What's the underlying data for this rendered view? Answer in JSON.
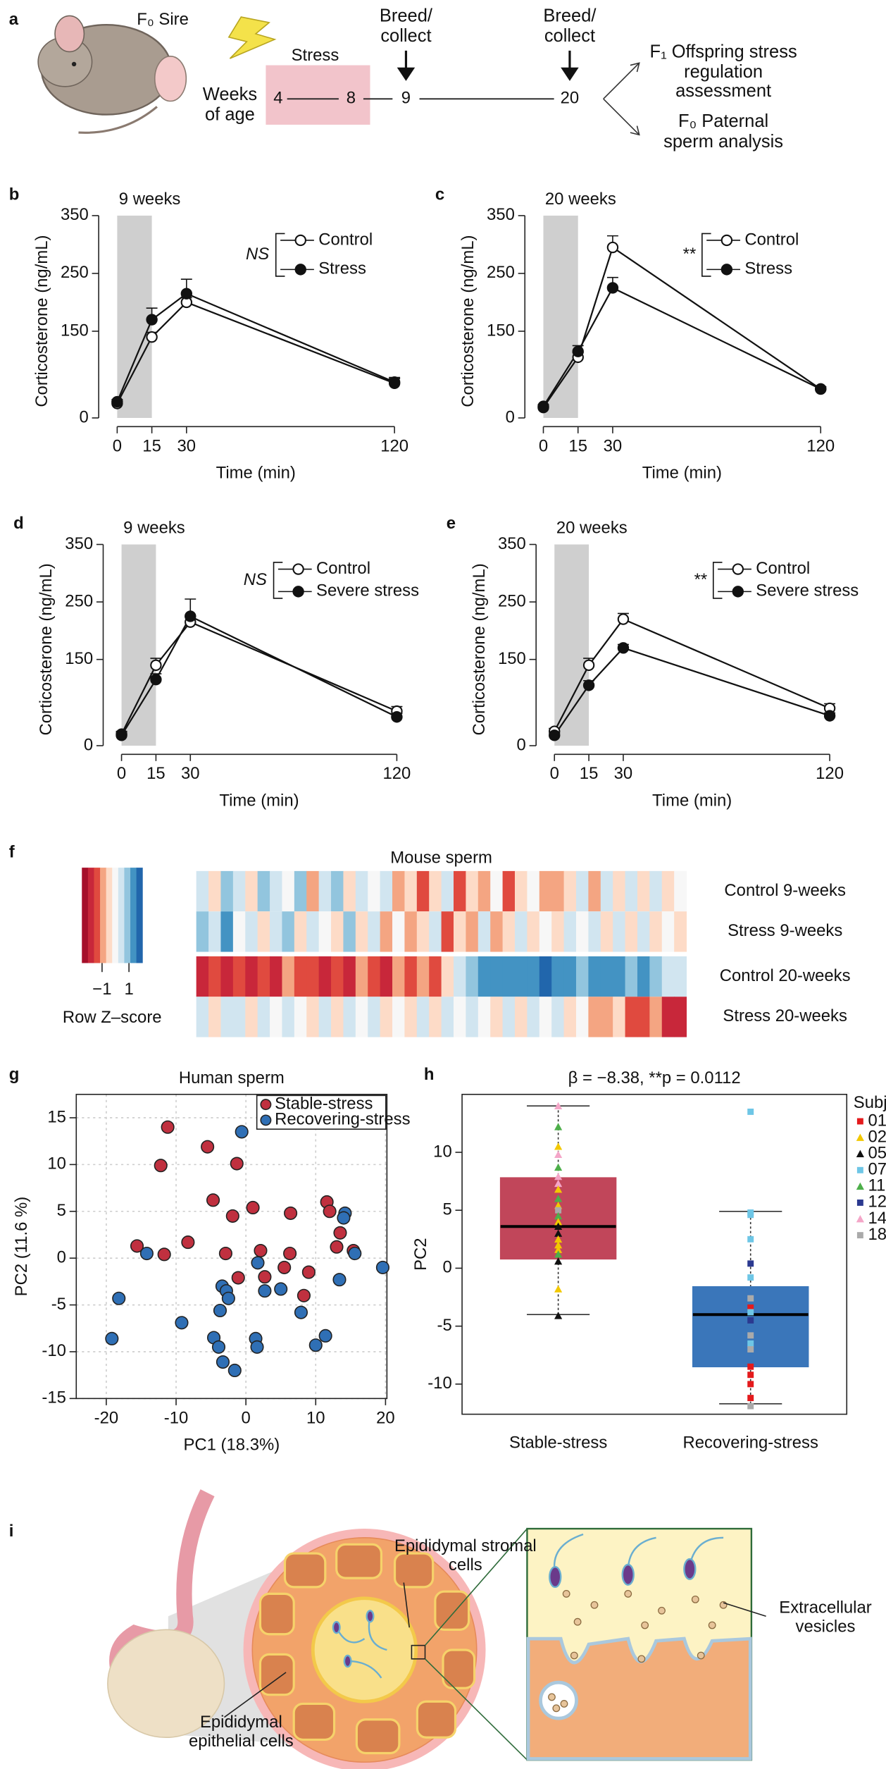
{
  "panel_a": {
    "panel": "a",
    "sire": "F₀ Sire",
    "stress": "Stress",
    "weeks_label": "Weeks of age",
    "timeline": [
      "4",
      "8",
      "9",
      "20"
    ],
    "breed1": "Breed/ collect",
    "breed2": "Breed/ collect",
    "offspring": "F₁ Offspring stress regulation assessment",
    "paternal": "F₀ Paternal sperm analysis"
  },
  "chart_data": [
    {
      "panel": "b",
      "type": "line",
      "title": "9 weeks",
      "x": [
        0,
        15,
        30,
        120
      ],
      "xticks": [
        0,
        15,
        30,
        120
      ],
      "xlim": [
        -8,
        124
      ],
      "ylim": [
        -15,
        350
      ],
      "yticks": [
        0,
        150,
        250,
        350
      ],
      "xlabel": "Time (min)",
      "ylabel": "Corticosterone (ng/mL)",
      "shaded_x": [
        0,
        15
      ],
      "annotation": "NS",
      "series": [
        {
          "name": "Control",
          "marker": "open",
          "values": [
            25,
            140,
            200,
            60
          ],
          "errors": [
            4,
            8,
            8,
            8
          ]
        },
        {
          "name": "Stress",
          "marker": "filled",
          "values": [
            28,
            170,
            215,
            62
          ],
          "errors": [
            4,
            20,
            25,
            8
          ]
        }
      ]
    },
    {
      "panel": "c",
      "type": "line",
      "title": "20 weeks",
      "x": [
        0,
        15,
        30,
        120
      ],
      "xticks": [
        0,
        15,
        30,
        120
      ],
      "xlim": [
        -8,
        124
      ],
      "ylim": [
        -15,
        350
      ],
      "yticks": [
        0,
        150,
        250,
        350
      ],
      "xlabel": "Time (min)",
      "ylabel": "Corticosterone (ng/mL)",
      "shaded_x": [
        0,
        15
      ],
      "annotation": "**",
      "series": [
        {
          "name": "Control",
          "marker": "open",
          "values": [
            18,
            105,
            295,
            50
          ],
          "errors": [
            3,
            8,
            20,
            4
          ]
        },
        {
          "name": "Stress",
          "marker": "filled",
          "values": [
            20,
            115,
            225,
            50
          ],
          "errors": [
            3,
            10,
            18,
            4
          ]
        }
      ]
    },
    {
      "panel": "d",
      "type": "line",
      "title": "9 weeks",
      "x": [
        0,
        15,
        30,
        120
      ],
      "xticks": [
        0,
        15,
        30,
        120
      ],
      "xlim": [
        -8,
        124
      ],
      "ylim": [
        -15,
        350
      ],
      "yticks": [
        0,
        150,
        250,
        350
      ],
      "xlabel": "Time (min)",
      "ylabel": "Corticosterone (ng/mL)",
      "shaded_x": [
        0,
        15
      ],
      "annotation": "NS",
      "series": [
        {
          "name": "Control",
          "marker": "open",
          "values": [
            20,
            140,
            215,
            60
          ],
          "errors": [
            5,
            12,
            10,
            8
          ]
        },
        {
          "name": "Severe stress",
          "marker": "filled",
          "values": [
            18,
            115,
            225,
            50
          ],
          "errors": [
            5,
            10,
            30,
            6
          ]
        }
      ]
    },
    {
      "panel": "e",
      "type": "line",
      "title": "20 weeks",
      "x": [
        0,
        15,
        30,
        120
      ],
      "xticks": [
        0,
        15,
        30,
        120
      ],
      "xlim": [
        -8,
        124
      ],
      "ylim": [
        -15,
        350
      ],
      "yticks": [
        0,
        150,
        250,
        350
      ],
      "xlabel": "Time (min)",
      "ylabel": "Corticosterone (ng/mL)",
      "shaded_x": [
        0,
        15
      ],
      "annotation": "**",
      "series": [
        {
          "name": "Control",
          "marker": "open",
          "values": [
            25,
            140,
            220,
            65
          ],
          "errors": [
            5,
            12,
            10,
            8
          ]
        },
        {
          "name": "Severe stress",
          "marker": "filled",
          "values": [
            18,
            105,
            170,
            52
          ],
          "errors": [
            3,
            8,
            6,
            5
          ]
        }
      ]
    },
    {
      "panel": "f",
      "type": "heatmap",
      "title": "Mouse sperm",
      "rows": [
        "Control 9-weeks",
        "Stress 9-weeks",
        "Control 20-weeks",
        "Stress 20-weeks"
      ],
      "zlim": [
        -2.5,
        2
      ],
      "palette": [
        "#a50f2a",
        "#c8273a",
        "#e04a3f",
        "#f4a582",
        "#fddbc7",
        "#f7f7f7",
        "#d1e5f0",
        "#92c5de",
        "#4393c3",
        "#2166ac"
      ],
      "colorbar_label": "Row Z–score",
      "colorbar_ticks": [
        {
          "value": -1,
          "label": "−1"
        },
        1
      ],
      "values": [
        [
          0.5,
          -0.3,
          0.8,
          0.2,
          -0.6,
          1.0,
          0.4,
          -0.2,
          0.7,
          -0.8,
          0.3,
          0.9,
          -0.4,
          0.6,
          -0.1,
          0.5,
          -0.9,
          -0.3,
          -1.2,
          -0.5,
          0.2,
          -1.4,
          -0.7,
          -1.0,
          -0.2,
          -1.3,
          -0.6,
          0.1,
          -0.9,
          -1.1,
          -0.4,
          0.3,
          -0.8,
          0.6,
          -0.3,
          0.4,
          -0.6,
          0.2,
          -0.5,
          0.1
        ],
        [
          0.9,
          0.3,
          1.1,
          -0.2,
          0.6,
          -0.4,
          0.2,
          0.8,
          -0.6,
          0.5,
          0.1,
          -0.3,
          0.7,
          -0.5,
          0.3,
          -0.9,
          -0.2,
          -1.1,
          -0.6,
          0.4,
          -1.3,
          -0.4,
          -0.8,
          0.2,
          -1.0,
          -0.5,
          0.3,
          -0.7,
          0.1,
          -0.3,
          0.6,
          -0.2,
          0.5,
          -0.4,
          0.3,
          -0.6,
          0.2,
          -0.3,
          0.1,
          -0.5
        ],
        [
          -1.8,
          -1.5,
          -1.9,
          -1.2,
          -1.6,
          -1.4,
          -1.7,
          -1.1,
          -1.5,
          -1.3,
          -1.8,
          -1.2,
          -1.6,
          -1.0,
          -1.4,
          -1.7,
          -1.1,
          -1.3,
          -0.9,
          -1.2,
          -0.6,
          0.3,
          0.9,
          1.2,
          1.4,
          1.1,
          1.5,
          1.3,
          1.6,
          1.2,
          1.4,
          1.0,
          1.3,
          1.5,
          1.1,
          0.9,
          1.2,
          0.8,
          0.6,
          0.4
        ],
        [
          0.4,
          -0.3,
          0.6,
          0.2,
          -0.5,
          0.3,
          -0.2,
          0.5,
          0.1,
          -0.4,
          0.3,
          -0.6,
          0.2,
          -0.1,
          0.4,
          -0.3,
          0.1,
          -0.7,
          0.2,
          -0.4,
          0.5,
          -0.2,
          0.3,
          0.1,
          -0.5,
          0.4,
          -0.3,
          0.2,
          -0.1,
          0.3,
          -0.6,
          -0.2,
          -0.8,
          -1.0,
          -0.7,
          -1.2,
          -1.4,
          -1.1,
          -1.6,
          -1.8
        ]
      ]
    },
    {
      "panel": "g",
      "type": "scatter",
      "title": "Human sperm",
      "xlabel": "PC1 (18.3%)",
      "ylabel": "PC2 (11.6 %)",
      "xlim": [
        -24.3,
        20.2
      ],
      "ylim": [
        -15,
        17.5
      ],
      "xticks": [
        -20,
        -10,
        0,
        10,
        20
      ],
      "yticks": [
        -15,
        -10,
        -5,
        0,
        5,
        10,
        15
      ],
      "grid": true,
      "legend": "top-right",
      "series": [
        {
          "name": "Stable-stress",
          "color": "#c0303f",
          "x": [
            -11.2,
            -12.2,
            -5.5,
            -1.3,
            -4.7,
            -1.9,
            1.0,
            -8.3,
            -15.6,
            -11.7,
            -2.9,
            6.4,
            11.6,
            13.5,
            15.4,
            13.0,
            6.3,
            2.1,
            5.5,
            2.7,
            8.3,
            -1.1,
            12.0,
            9.0
          ],
          "values": [
            14.0,
            9.9,
            11.9,
            10.1,
            6.2,
            4.5,
            5.4,
            1.7,
            1.3,
            0.4,
            0.5,
            4.8,
            6.0,
            2.7,
            0.8,
            1.2,
            0.5,
            0.8,
            -1.0,
            -2.0,
            -4.0,
            -2.1,
            5.0,
            -1.5
          ]
        },
        {
          "name": "Recovering-stress",
          "color": "#2f6fb5",
          "x": [
            -0.6,
            -18.2,
            -19.2,
            -14.2,
            -9.2,
            -3.4,
            -2.8,
            -2.5,
            -3.7,
            -4.6,
            -3.9,
            -3.3,
            -1.6,
            1.4,
            1.6,
            1.7,
            2.7,
            5.0,
            7.9,
            10.0,
            11.4,
            14.2,
            14.0,
            15.6,
            19.6,
            13.4
          ],
          "values": [
            13.5,
            -4.3,
            -8.6,
            0.5,
            -6.9,
            -3.0,
            -3.5,
            -4.3,
            -5.6,
            -8.5,
            -9.5,
            -11.1,
            -12.0,
            -8.6,
            -9.5,
            -0.5,
            -3.5,
            -3.3,
            -5.8,
            -9.3,
            -8.3,
            4.8,
            4.3,
            0.5,
            -1.0,
            -2.3
          ]
        }
      ]
    },
    {
      "panel": "h",
      "type": "box",
      "title": "β = −8.38, **p = 0.0112",
      "ylabel": "PC2",
      "ylim": [
        -12.6,
        15
      ],
      "yticks": [
        -10,
        -5,
        0,
        5,
        10
      ],
      "categories": [
        "Stable-stress",
        "Recovering-stress"
      ],
      "colors": [
        "#c1465a",
        "#3a76ba"
      ],
      "boxes": [
        {
          "whisker_low": -4.0,
          "q1": 0.8,
          "median": 3.6,
          "q3": 7.8,
          "whisker_high": 14.0
        },
        {
          "whisker_low": -11.7,
          "q1": -8.5,
          "median": -4.0,
          "q3": -1.6,
          "whisker_high": 4.9
        }
      ],
      "legend_title": "Subject",
      "subjects": [
        {
          "name": "01",
          "color": "#e41a1c",
          "shape": "square"
        },
        {
          "name": "02",
          "color": "#f2c800",
          "shape": "triangle"
        },
        {
          "name": "05",
          "color": "#111111",
          "shape": "triangle"
        },
        {
          "name": "07",
          "color": "#6ec6e6",
          "shape": "square"
        },
        {
          "name": "11",
          "color": "#4daf4a",
          "shape": "triangle"
        },
        {
          "name": "12",
          "color": "#2b3990",
          "shape": "square"
        },
        {
          "name": "14",
          "color": "#f4a6c8",
          "shape": "triangle"
        },
        {
          "name": "18",
          "color": "#aaaaaa",
          "shape": "square"
        }
      ],
      "points": [
        [
          {
            "value": 14.0,
            "subject": "14"
          },
          {
            "value": 12.2,
            "subject": "11"
          },
          {
            "value": 10.5,
            "subject": "02"
          },
          {
            "value": 9.8,
            "subject": "14"
          },
          {
            "value": 8.7,
            "subject": "11"
          },
          {
            "value": 7.9,
            "subject": "14"
          },
          {
            "value": 7.3,
            "subject": "14"
          },
          {
            "value": 6.8,
            "subject": "02"
          },
          {
            "value": 6.0,
            "subject": "11"
          },
          {
            "value": 5.4,
            "subject": "02"
          },
          {
            "value": 5.0,
            "subject": "18"
          },
          {
            "value": 4.5,
            "subject": "11"
          },
          {
            "value": 4.0,
            "subject": "02"
          },
          {
            "value": 3.6,
            "subject": "05"
          },
          {
            "value": 3.0,
            "subject": "05"
          },
          {
            "value": 2.5,
            "subject": "02"
          },
          {
            "value": 2.0,
            "subject": "02"
          },
          {
            "value": 1.6,
            "subject": "02"
          },
          {
            "value": 1.2,
            "subject": "11"
          },
          {
            "value": 0.6,
            "subject": "05"
          },
          {
            "value": -1.8,
            "subject": "02"
          },
          {
            "value": -4.1,
            "subject": "05"
          }
        ],
        [
          {
            "value": 13.5,
            "subject": "07"
          },
          {
            "value": 4.8,
            "subject": "07"
          },
          {
            "value": 4.6,
            "subject": "07"
          },
          {
            "value": 2.5,
            "subject": "07"
          },
          {
            "value": 0.4,
            "subject": "12"
          },
          {
            "value": -0.8,
            "subject": "07"
          },
          {
            "value": -2.6,
            "subject": "18"
          },
          {
            "value": -3.4,
            "subject": "01"
          },
          {
            "value": -3.8,
            "subject": "07"
          },
          {
            "value": -4.5,
            "subject": "12"
          },
          {
            "value": -5.8,
            "subject": "18"
          },
          {
            "value": -6.5,
            "subject": "07"
          },
          {
            "value": -7.0,
            "subject": "18"
          },
          {
            "value": -8.5,
            "subject": "01"
          },
          {
            "value": -9.2,
            "subject": "01"
          },
          {
            "value": -10.0,
            "subject": "01"
          },
          {
            "value": -11.2,
            "subject": "01"
          },
          {
            "value": -11.9,
            "subject": "18"
          }
        ]
      ]
    }
  ],
  "panel_i": {
    "panel": "i",
    "stromal": "Epididymal stromal cells",
    "epithelial": "Epididymal epithelial cells",
    "vesicles": "Extracellular vesicles"
  }
}
